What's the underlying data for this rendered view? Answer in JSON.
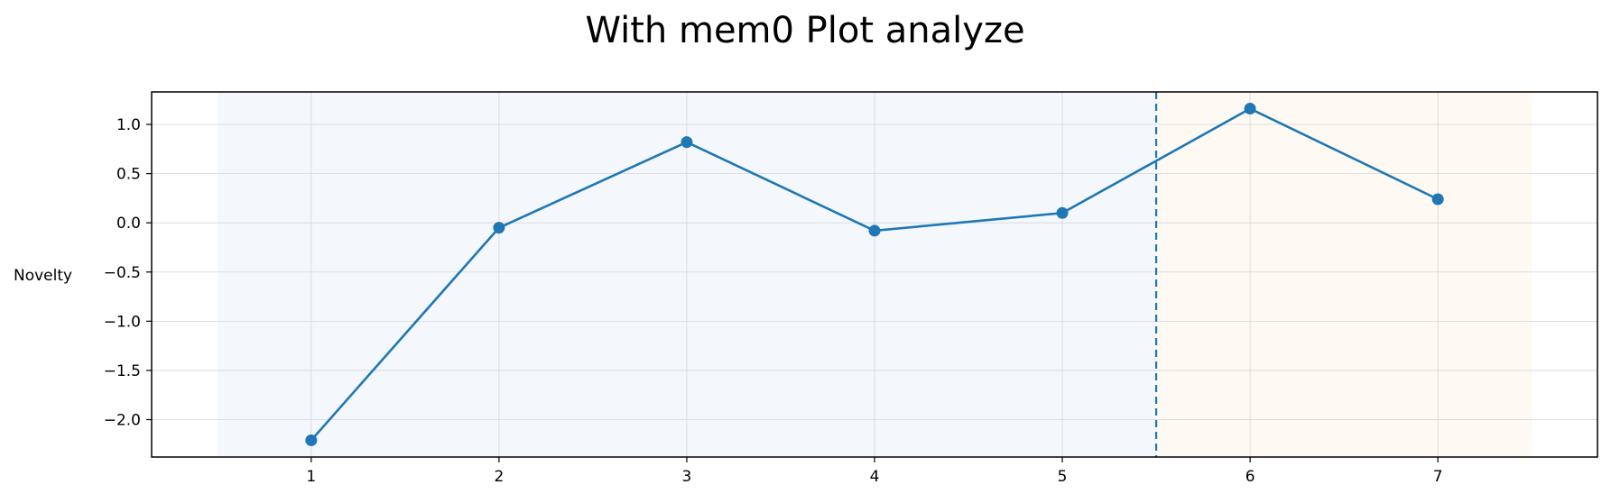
{
  "chart_data": {
    "type": "line",
    "title": "With mem0 Plot analyze",
    "xlabel": "",
    "ylabel": "Novelty",
    "x": [
      1,
      2,
      3,
      4,
      5,
      6,
      7
    ],
    "series": [
      {
        "values": [
          -2.21,
          -0.05,
          0.82,
          -0.08,
          0.1,
          1.16,
          0.24
        ],
        "color": "#1f77b4"
      }
    ],
    "x_ticks": [
      "1",
      "2",
      "3",
      "4",
      "5",
      "6",
      "7"
    ],
    "y_ticks": [
      "1.0",
      "0.5",
      "0.0",
      "−0.5",
      "−1.0",
      "−1.5",
      "−2.0"
    ],
    "y_tick_values": [
      1.0,
      0.5,
      0.0,
      -0.5,
      -1.0,
      -1.5,
      -2.0
    ],
    "xlim": [
      0.15,
      7.85
    ],
    "ylim": [
      -2.38,
      1.33
    ],
    "grid": true,
    "legend": false,
    "divider": {
      "x": 5.5,
      "style": "dashed",
      "color": "#1f77b4"
    },
    "regions": [
      {
        "x_start": 0.5,
        "x_end": 5.5,
        "color": "#f4f8fc"
      },
      {
        "x_start": 5.5,
        "x_end": 7.5,
        "color": "#fef9f3"
      }
    ]
  }
}
